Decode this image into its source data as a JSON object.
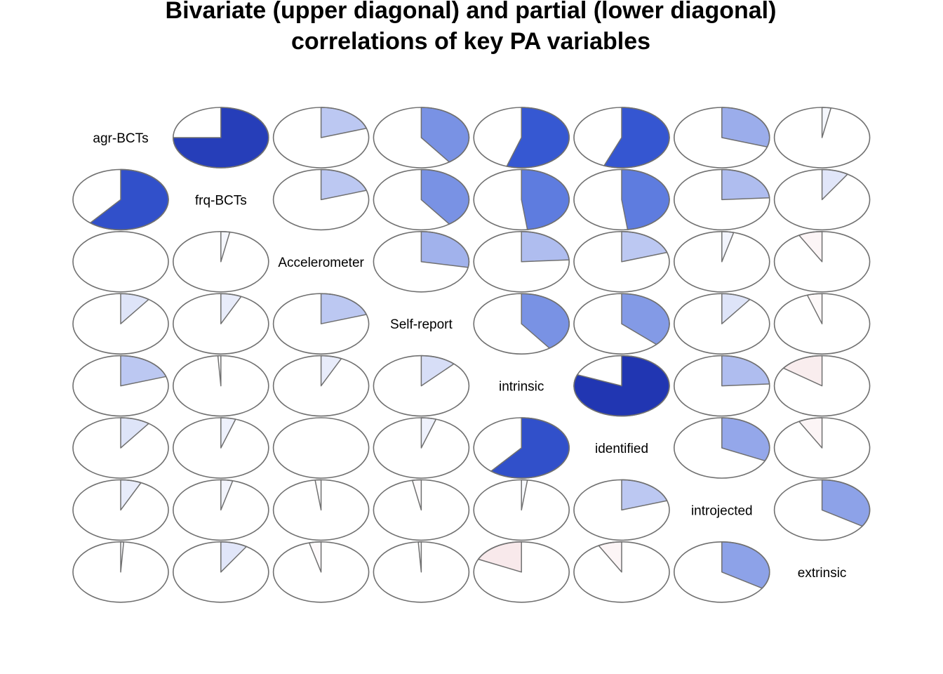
{
  "chart_data": {
    "type": "correlogram-pie",
    "title_lines": [
      "Bivariate (upper diagonal) and partial (lower diagonal)",
      "correlations of key PA variables"
    ],
    "variables": [
      "agr-BCTs",
      "frq-BCTs",
      "Accelerometer",
      "Self-report",
      "intrinsic",
      "identified",
      "introjected",
      "extrinsic"
    ],
    "upper": "bivariate correlations",
    "lower": "partial correlations",
    "matrix": [
      [
        1.0,
        0.75,
        0.2,
        0.4,
        0.55,
        0.56,
        0.3,
        0.03
      ],
      [
        0.61,
        1.0,
        0.2,
        0.4,
        0.48,
        0.48,
        0.24,
        0.09
      ],
      [
        0.0,
        0.03,
        1.0,
        0.28,
        0.24,
        0.2,
        0.04,
        -0.08
      ],
      [
        0.1,
        0.07,
        0.2,
        1.0,
        0.4,
        0.37,
        0.1,
        -0.05
      ],
      [
        0.2,
        -0.01,
        0.07,
        0.12,
        1.0,
        0.81,
        0.24,
        -0.15
      ],
      [
        0.1,
        0.05,
        0.0,
        0.05,
        0.61,
        1.0,
        0.32,
        -0.08
      ],
      [
        0.07,
        0.04,
        -0.02,
        -0.03,
        0.02,
        0.2,
        1.0,
        0.34
      ],
      [
        0.01,
        0.09,
        -0.04,
        -0.01,
        -0.18,
        -0.08,
        0.34,
        1.0
      ]
    ],
    "colors": {
      "positive_strong": "#111e9a",
      "positive_mid": "#3a5ed8",
      "positive_light": "#dfe6fa",
      "negative_light": "#ffe6e6",
      "negative_strong": "#b40f20",
      "outline": "#707070"
    },
    "grid": false,
    "legend": "none"
  }
}
